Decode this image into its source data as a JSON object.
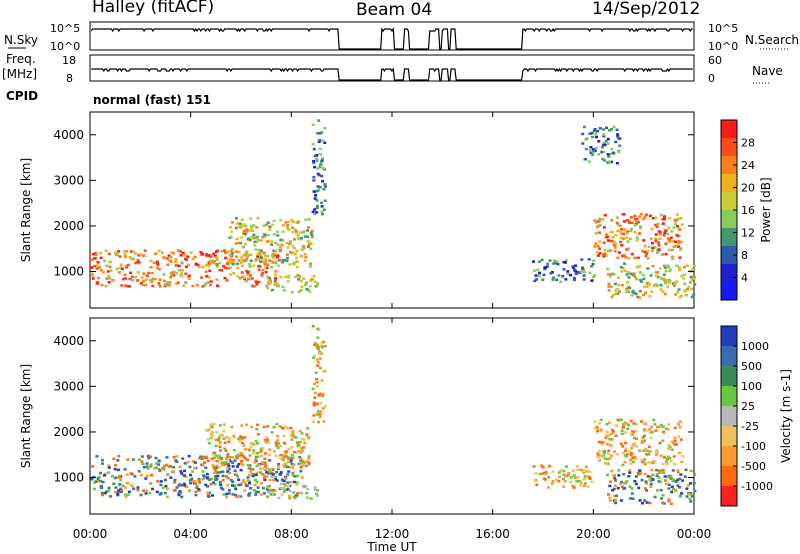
{
  "header": {
    "station": "Halley (fitACF)",
    "beam": "Beam 04",
    "date": "14/Sep/2012"
  },
  "aux": {
    "nsky_label": "N.Sky",
    "nsky_ticks": [
      "10^5",
      "10^0"
    ],
    "nsearch_label": "N.Search",
    "nsearch_ticks": [
      "10^5",
      "10^0"
    ],
    "freq_label": "Freq.",
    "freq_unit": "[MHz]",
    "freq_ticks": [
      "18",
      "8"
    ],
    "nave_label": "Nave",
    "nave_ticks": [
      "60",
      "0"
    ],
    "cpid_label": "CPID",
    "cpid_value": "normal (fast) 151",
    "data_gaps_hours": [
      [
        9.9,
        11.6
      ],
      [
        12.1,
        12.5
      ],
      [
        12.7,
        13.5
      ],
      [
        13.9,
        14.0
      ],
      [
        14.25,
        14.35
      ],
      [
        14.55,
        17.2
      ]
    ]
  },
  "chart_data": [
    {
      "type": "heatmap",
      "panel": "power",
      "ylabel": "Slant Range [km]",
      "yticks": [
        1000,
        2000,
        3000,
        4000
      ],
      "ylim": [
        200,
        4500
      ],
      "xlim_hours": [
        0,
        24
      ],
      "colorbar_label": "Power [dB]",
      "colorbar_ticks": [
        "28",
        "24",
        "20",
        "16",
        "12",
        "8",
        "4"
      ],
      "colorbar_colors": [
        "#ff1a1a",
        "#ff4a1a",
        "#ff7f1a",
        "#f0b020",
        "#c8cc3a",
        "#8acc5a",
        "#3f9a6a",
        "#2f5ab0",
        "#2020d0",
        "#1818ff"
      ],
      "regions": [
        {
          "t0": 0.0,
          "t1": 7.5,
          "r0": 700,
          "r1": 1500,
          "level": "high"
        },
        {
          "t0": 5.5,
          "t1": 8.8,
          "r0": 1100,
          "r1": 2200,
          "level": "mid"
        },
        {
          "t0": 7.0,
          "t1": 9.0,
          "r0": 550,
          "r1": 950,
          "level": "mid"
        },
        {
          "t0": 8.8,
          "t1": 9.3,
          "r0": 2200,
          "r1": 4400,
          "level": "low"
        },
        {
          "t0": 17.5,
          "t1": 20.0,
          "r0": 800,
          "r1": 1300,
          "level": "low"
        },
        {
          "t0": 20.0,
          "t1": 23.5,
          "r0": 1300,
          "r1": 2300,
          "level": "high"
        },
        {
          "t0": 20.5,
          "t1": 24.0,
          "r0": 450,
          "r1": 1200,
          "level": "mid"
        },
        {
          "t0": 19.5,
          "t1": 21.0,
          "r0": 3400,
          "r1": 4200,
          "level": "low"
        }
      ]
    },
    {
      "type": "heatmap",
      "panel": "velocity",
      "xlabel": "Time UT",
      "ylabel": "Slant Range [km]",
      "xticks": [
        "00:00",
        "04:00",
        "08:00",
        "12:00",
        "16:00",
        "20:00",
        "00:00"
      ],
      "yticks": [
        1000,
        2000,
        3000,
        4000
      ],
      "ylim": [
        200,
        4500
      ],
      "xlim_hours": [
        0,
        24
      ],
      "colorbar_label": "Velocity [m s-1]",
      "colorbar_ticks": [
        "1000",
        "500",
        "100",
        "25",
        "-25",
        "-100",
        "-500",
        "-1000"
      ],
      "colorbar_colors": [
        "#2040c0",
        "#3a6ab0",
        "#3a8a5a",
        "#6ac840",
        "#b8b8b8",
        "#f0c060",
        "#ff9a30",
        "#ff6a10",
        "#ff2020"
      ],
      "regions": [
        {
          "t0": 0.0,
          "t1": 8.5,
          "r0": 600,
          "r1": 1500,
          "level": "mixed"
        },
        {
          "t0": 4.5,
          "t1": 8.8,
          "r0": 1200,
          "r1": 2200,
          "level": "neg"
        },
        {
          "t0": 7.0,
          "t1": 9.0,
          "r0": 550,
          "r1": 900,
          "level": "near-zero"
        },
        {
          "t0": 8.8,
          "t1": 9.3,
          "r0": 2200,
          "r1": 4400,
          "level": "neg"
        },
        {
          "t0": 17.5,
          "t1": 20.0,
          "r0": 800,
          "r1": 1300,
          "level": "neg"
        },
        {
          "t0": 20.0,
          "t1": 23.5,
          "r0": 1300,
          "r1": 2300,
          "level": "neg"
        },
        {
          "t0": 20.5,
          "t1": 24.0,
          "r0": 450,
          "r1": 1200,
          "level": "mixed"
        }
      ]
    }
  ]
}
